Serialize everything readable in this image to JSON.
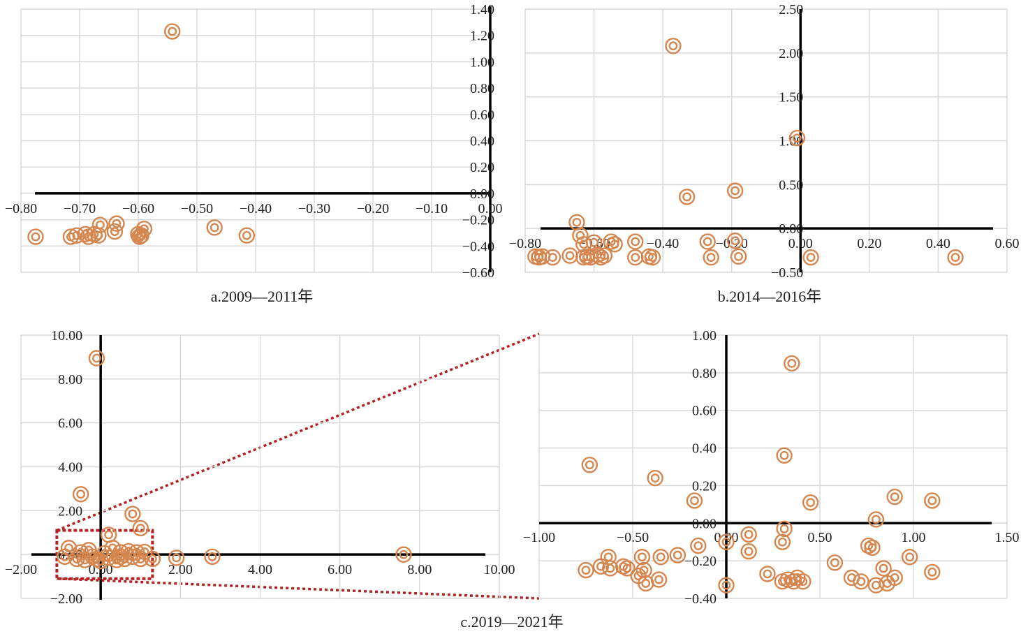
{
  "colors": {
    "marker": "#D4864E",
    "axis": "#000000",
    "grid": "#D9D9D9",
    "zoom_box": "#B22222"
  },
  "chart_data": [
    {
      "id": "a",
      "type": "scatter",
      "caption": "a.2009—2011年",
      "xlim": [
        -0.8,
        0.0
      ],
      "ylim": [
        -0.6,
        1.4
      ],
      "xticks": [
        "−0.80",
        "−0.70",
        "−0.60",
        "−0.50",
        "−0.40",
        "−0.30",
        "−0.20",
        "−0.10",
        "0.00"
      ],
      "yticks": [
        "−0.60",
        "−0.40",
        "−0.20",
        "0.00",
        "0.20",
        "0.40",
        "0.60",
        "0.80",
        "1.00",
        "1.20",
        "1.40"
      ],
      "grid": true,
      "points": [
        {
          "x": -0.775,
          "y": -0.33
        },
        {
          "x": -0.715,
          "y": -0.33
        },
        {
          "x": -0.705,
          "y": -0.32
        },
        {
          "x": -0.69,
          "y": -0.31
        },
        {
          "x": -0.685,
          "y": -0.33
        },
        {
          "x": -0.675,
          "y": -0.31
        },
        {
          "x": -0.668,
          "y": -0.32
        },
        {
          "x": -0.665,
          "y": -0.24
        },
        {
          "x": -0.64,
          "y": -0.29
        },
        {
          "x": -0.637,
          "y": -0.23
        },
        {
          "x": -0.6,
          "y": -0.31
        },
        {
          "x": -0.598,
          "y": -0.33
        },
        {
          "x": -0.595,
          "y": -0.32
        },
        {
          "x": -0.59,
          "y": -0.27
        },
        {
          "x": -0.542,
          "y": 1.23
        },
        {
          "x": -0.47,
          "y": -0.26
        },
        {
          "x": -0.415,
          "y": -0.32
        }
      ]
    },
    {
      "id": "b",
      "type": "scatter",
      "caption": "b.2014—2016年",
      "xlim": [
        -0.8,
        0.6
      ],
      "ylim": [
        -0.5,
        2.5
      ],
      "xticks": [
        "−0.80",
        "−0.60",
        "−0.40",
        "−0.20",
        "0.00",
        "0.20",
        "0.40",
        "0.60"
      ],
      "yticks": [
        "−0.50",
        "0.00",
        "0.50",
        "1.00",
        "1.50",
        "2.00",
        "2.50"
      ],
      "grid": true,
      "points": [
        {
          "x": -0.77,
          "y": -0.32
        },
        {
          "x": -0.76,
          "y": -0.33
        },
        {
          "x": -0.75,
          "y": -0.32
        },
        {
          "x": -0.72,
          "y": -0.33
        },
        {
          "x": -0.67,
          "y": -0.31
        },
        {
          "x": -0.65,
          "y": 0.07
        },
        {
          "x": -0.64,
          "y": -0.08
        },
        {
          "x": -0.63,
          "y": -0.33
        },
        {
          "x": -0.63,
          "y": -0.18
        },
        {
          "x": -0.62,
          "y": -0.32
        },
        {
          "x": -0.61,
          "y": -0.33
        },
        {
          "x": -0.6,
          "y": -0.16
        },
        {
          "x": -0.59,
          "y": -0.3
        },
        {
          "x": -0.58,
          "y": -0.33
        },
        {
          "x": -0.57,
          "y": -0.31
        },
        {
          "x": -0.55,
          "y": -0.15
        },
        {
          "x": -0.54,
          "y": -0.18
        },
        {
          "x": -0.48,
          "y": -0.33
        },
        {
          "x": -0.48,
          "y": -0.15
        },
        {
          "x": -0.44,
          "y": -0.32
        },
        {
          "x": -0.43,
          "y": -0.33
        },
        {
          "x": -0.37,
          "y": 2.08
        },
        {
          "x": -0.33,
          "y": 0.36
        },
        {
          "x": -0.27,
          "y": -0.15
        },
        {
          "x": -0.26,
          "y": -0.33
        },
        {
          "x": -0.19,
          "y": 0.43
        },
        {
          "x": -0.19,
          "y": -0.14
        },
        {
          "x": -0.18,
          "y": -0.32
        },
        {
          "x": -0.01,
          "y": 1.03
        },
        {
          "x": 0.03,
          "y": -0.33
        },
        {
          "x": 0.45,
          "y": -0.33
        }
      ]
    },
    {
      "id": "c",
      "type": "scatter",
      "caption": "c.2019—2021年",
      "xlim": [
        -2.0,
        10.0
      ],
      "ylim": [
        -2.0,
        10.0
      ],
      "xticks": [
        "−2.00",
        "0.00",
        "2.00",
        "4.00",
        "6.00",
        "8.00",
        "10.00"
      ],
      "yticks": [
        "−2.00",
        "0.00",
        "2.00",
        "4.00",
        "6.00",
        "8.00",
        "10.00"
      ],
      "grid": true,
      "points": [
        {
          "x": -0.1,
          "y": 8.95
        },
        {
          "x": -0.5,
          "y": 2.75
        },
        {
          "x": 0.8,
          "y": 1.85
        },
        {
          "x": 1.0,
          "y": 1.2
        },
        {
          "x": 0.2,
          "y": 0.9
        },
        {
          "x": 1.3,
          "y": -0.2
        },
        {
          "x": 1.9,
          "y": -0.15
        },
        {
          "x": 2.8,
          "y": -0.1
        },
        {
          "x": 7.6,
          "y": 0.0
        },
        {
          "x": -0.9,
          "y": -0.1
        },
        {
          "x": -0.8,
          "y": 0.3
        },
        {
          "x": -0.6,
          "y": -0.2
        },
        {
          "x": -0.5,
          "y": 0.1
        },
        {
          "x": -0.4,
          "y": -0.25
        },
        {
          "x": -0.3,
          "y": 0.2
        },
        {
          "x": -0.2,
          "y": -0.1
        },
        {
          "x": -0.1,
          "y": -0.2
        },
        {
          "x": 0.0,
          "y": -0.3
        },
        {
          "x": 0.1,
          "y": 0.05
        },
        {
          "x": 0.2,
          "y": -0.15
        },
        {
          "x": 0.3,
          "y": 0.3
        },
        {
          "x": 0.4,
          "y": -0.25
        },
        {
          "x": 0.5,
          "y": 0.1
        },
        {
          "x": 0.6,
          "y": -0.2
        },
        {
          "x": 0.7,
          "y": 0.15
        },
        {
          "x": 0.8,
          "y": -0.1
        },
        {
          "x": 0.9,
          "y": 0.1
        },
        {
          "x": 1.0,
          "y": -0.2
        },
        {
          "x": 1.1,
          "y": 0.12
        },
        {
          "x": 0.5,
          "y": -0.1
        }
      ],
      "zoom_box": {
        "x": [
          -1.1,
          1.3
        ],
        "y": [
          -1.1,
          1.1
        ]
      }
    },
    {
      "id": "c-zoom",
      "type": "scatter",
      "caption": "",
      "xlim": [
        -1.0,
        1.5
      ],
      "ylim": [
        -0.4,
        1.0
      ],
      "xticks": [
        "−1.00",
        "−0.50",
        "0.00",
        "0.50",
        "1.00",
        "1.50"
      ],
      "yticks": [
        "−0.40",
        "−0.20",
        "0.00",
        "0.20",
        "0.40",
        "0.60",
        "0.80",
        "1.00"
      ],
      "grid": true,
      "points": [
        {
          "x": -0.73,
          "y": 0.31
        },
        {
          "x": -0.38,
          "y": 0.24
        },
        {
          "x": -0.17,
          "y": 0.12
        },
        {
          "x": 0.35,
          "y": 0.85
        },
        {
          "x": 0.31,
          "y": 0.36
        },
        {
          "x": 0.45,
          "y": 0.11
        },
        {
          "x": 0.9,
          "y": 0.14
        },
        {
          "x": 1.1,
          "y": 0.12
        },
        {
          "x": 0.8,
          "y": 0.02
        },
        {
          "x": 0.31,
          "y": -0.03
        },
        {
          "x": 0.3,
          "y": -0.1
        },
        {
          "x": -0.15,
          "y": -0.12
        },
        {
          "x": 0.0,
          "y": -0.1
        },
        {
          "x": 0.12,
          "y": -0.06
        },
        {
          "x": 0.12,
          "y": -0.15
        },
        {
          "x": 0.76,
          "y": -0.12
        },
        {
          "x": 0.78,
          "y": -0.13
        },
        {
          "x": 0.98,
          "y": -0.18
        },
        {
          "x": -0.75,
          "y": -0.25
        },
        {
          "x": -0.67,
          "y": -0.23
        },
        {
          "x": -0.63,
          "y": -0.18
        },
        {
          "x": -0.62,
          "y": -0.24
        },
        {
          "x": -0.55,
          "y": -0.23
        },
        {
          "x": -0.53,
          "y": -0.24
        },
        {
          "x": -0.47,
          "y": -0.28
        },
        {
          "x": -0.45,
          "y": -0.18
        },
        {
          "x": -0.44,
          "y": -0.25
        },
        {
          "x": -0.43,
          "y": -0.32
        },
        {
          "x": -0.36,
          "y": -0.3
        },
        {
          "x": -0.35,
          "y": -0.18
        },
        {
          "x": -0.26,
          "y": -0.17
        },
        {
          "x": 0.0,
          "y": -0.33
        },
        {
          "x": 0.22,
          "y": -0.27
        },
        {
          "x": 0.3,
          "y": -0.31
        },
        {
          "x": 0.33,
          "y": -0.3
        },
        {
          "x": 0.36,
          "y": -0.31
        },
        {
          "x": 0.38,
          "y": -0.29
        },
        {
          "x": 0.41,
          "y": -0.31
        },
        {
          "x": 0.58,
          "y": -0.21
        },
        {
          "x": 0.67,
          "y": -0.29
        },
        {
          "x": 0.72,
          "y": -0.31
        },
        {
          "x": 0.8,
          "y": -0.33
        },
        {
          "x": 0.84,
          "y": -0.24
        },
        {
          "x": 0.86,
          "y": -0.32
        },
        {
          "x": 0.9,
          "y": -0.29
        },
        {
          "x": 1.1,
          "y": -0.26
        }
      ]
    }
  ]
}
